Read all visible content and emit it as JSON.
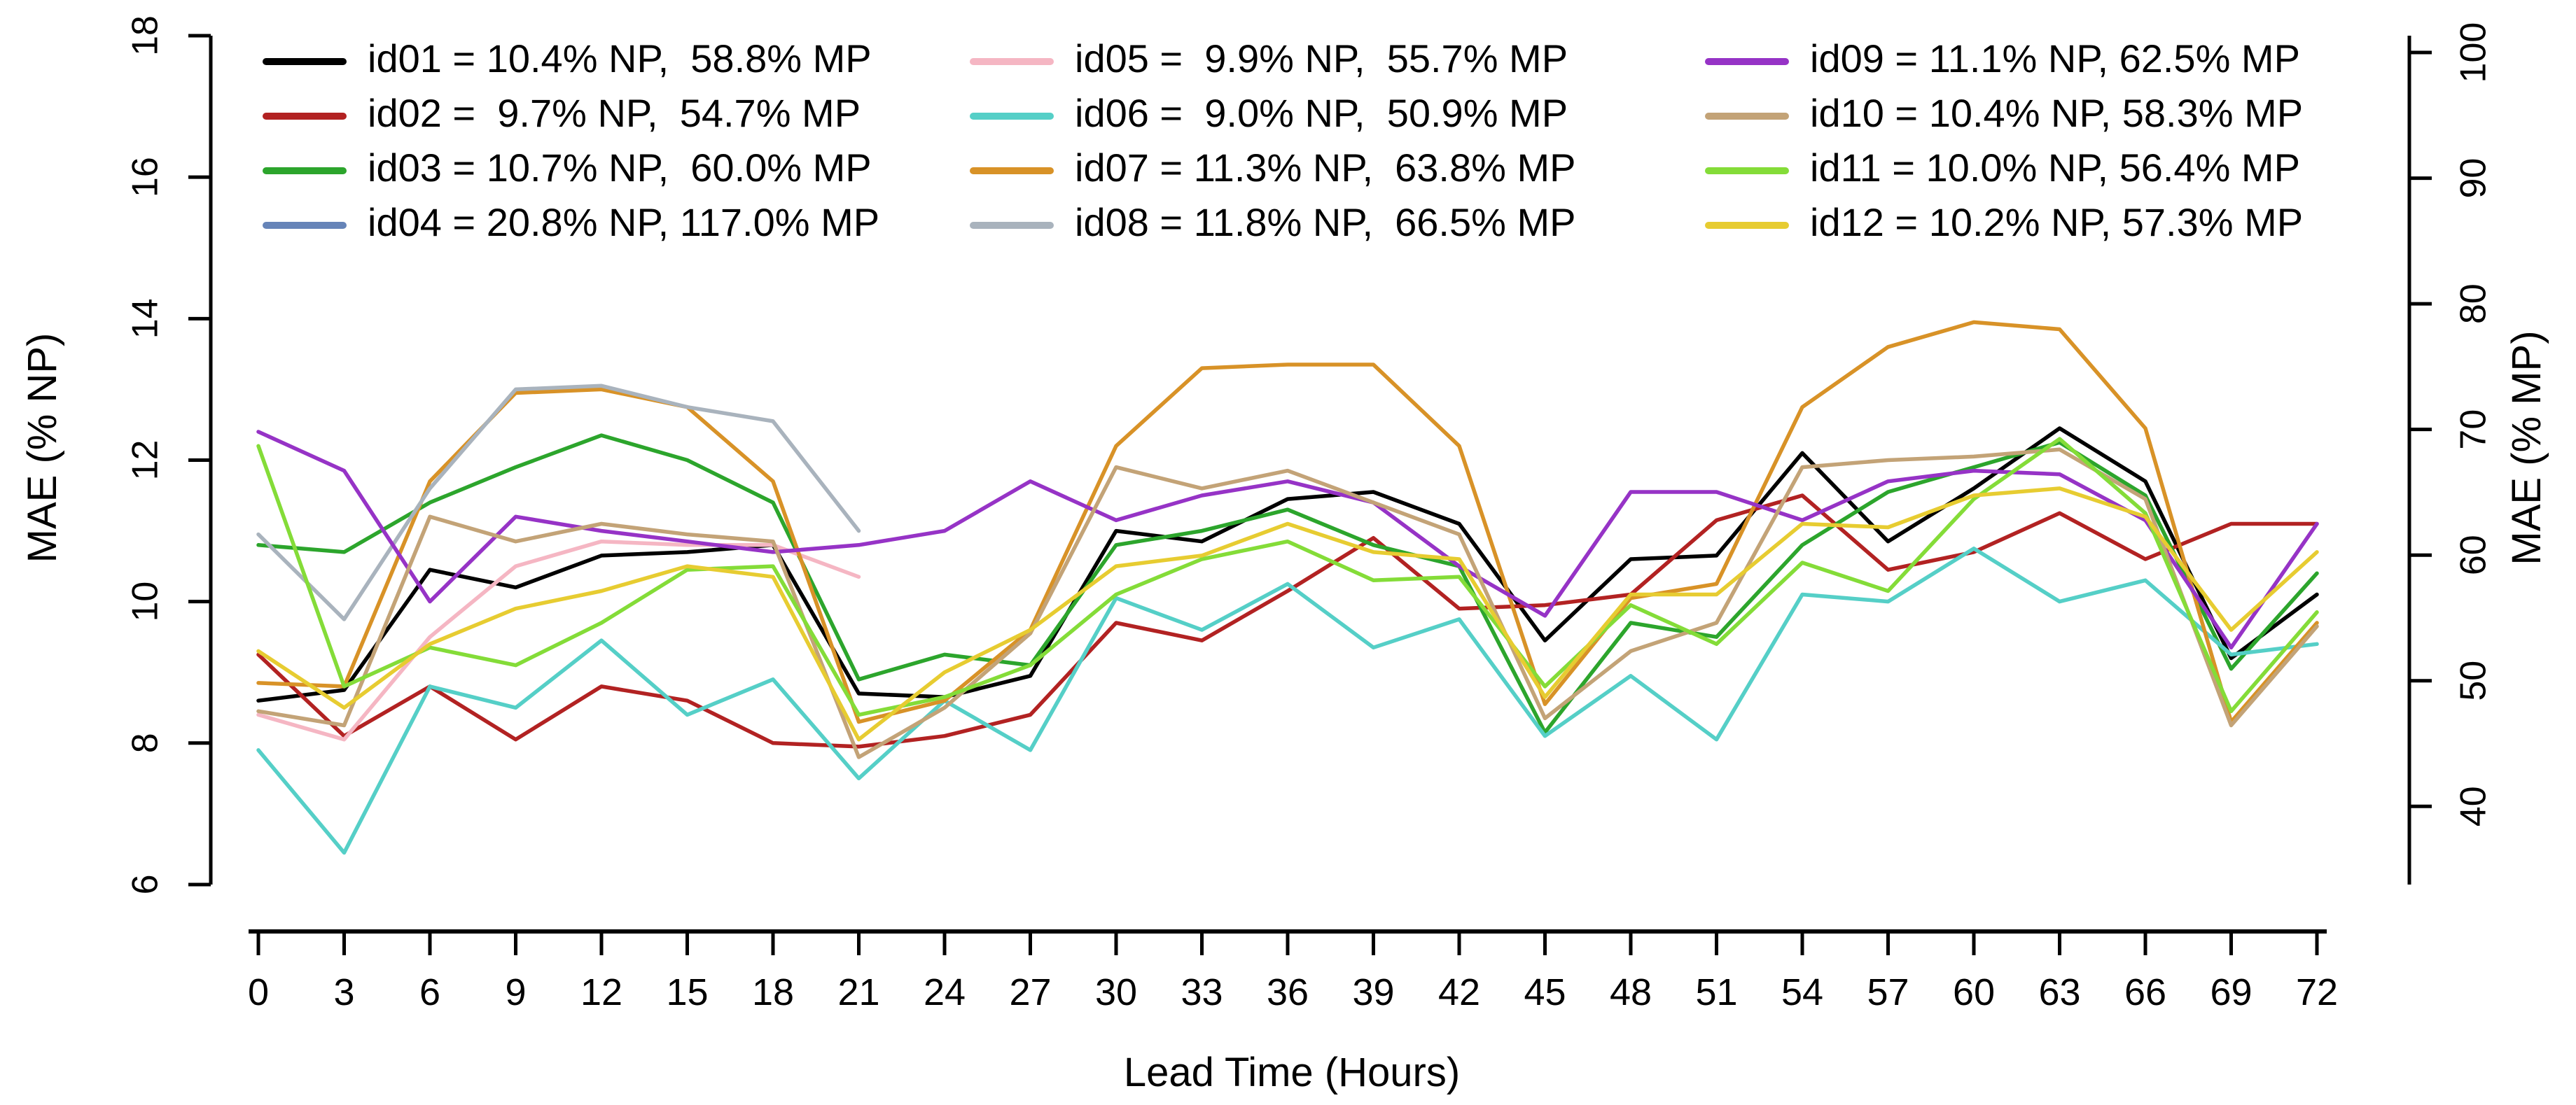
{
  "figure": {
    "xlabel": "Lead Time (Hours)",
    "ylabel_left": "MAE (% NP)",
    "ylabel_right": "MAE (% MP)"
  },
  "chart_data": {
    "type": "line",
    "title": "",
    "xlabel": "Lead Time (Hours)",
    "ylabel": "MAE (% NP)",
    "ylabel_right": "MAE (% MP)",
    "x": [
      0,
      3,
      6,
      9,
      12,
      15,
      18,
      21,
      24,
      27,
      30,
      33,
      36,
      39,
      42,
      45,
      48,
      51,
      54,
      57,
      60,
      63,
      66,
      69,
      72
    ],
    "xlim": [
      0,
      72
    ],
    "ylim": [
      6,
      18
    ],
    "ylim_right": [
      40,
      100
    ],
    "right_axis_ratio_mp_per_np": 5.63,
    "x_ticks": [
      0,
      3,
      6,
      9,
      12,
      15,
      18,
      21,
      24,
      27,
      30,
      33,
      36,
      39,
      42,
      45,
      48,
      51,
      54,
      57,
      60,
      63,
      66,
      69,
      72
    ],
    "y_ticks_left": [
      6,
      8,
      10,
      12,
      14,
      16,
      18
    ],
    "y_ticks_right": [
      40,
      50,
      60,
      70,
      80,
      90,
      100
    ],
    "grid": false,
    "legend_position": "top",
    "legend_columns": 3,
    "series": [
      {
        "name": "id01",
        "label": "id01 = 10.4% NP,  58.8% MP",
        "color": "#000000",
        "values": [
          8.6,
          8.75,
          10.45,
          10.2,
          10.65,
          10.7,
          10.8,
          8.7,
          8.65,
          8.95,
          11.0,
          10.85,
          11.45,
          11.55,
          11.1,
          9.45,
          10.6,
          10.65,
          12.1,
          10.85,
          11.6,
          12.45,
          11.7,
          9.2,
          10.1
        ]
      },
      {
        "name": "id02",
        "label": "id02 =  9.7% NP,  54.7% MP",
        "color": "#B22222",
        "values": [
          9.25,
          8.1,
          8.8,
          8.05,
          8.8,
          8.6,
          8.0,
          7.95,
          8.1,
          8.4,
          9.7,
          9.45,
          10.15,
          10.9,
          9.9,
          9.95,
          10.1,
          11.15,
          11.5,
          10.45,
          10.7,
          11.25,
          10.6,
          11.1,
          11.1
        ]
      },
      {
        "name": "id03",
        "label": "id03 = 10.7% NP,  60.0% MP",
        "color": "#2CA52C",
        "values": [
          10.8,
          10.7,
          11.4,
          11.9,
          12.35,
          12.0,
          11.4,
          8.9,
          9.25,
          9.1,
          10.8,
          11.0,
          11.3,
          10.8,
          10.5,
          8.15,
          9.7,
          9.5,
          10.8,
          11.55,
          11.9,
          12.25,
          11.5,
          9.05,
          10.4
        ]
      },
      {
        "name": "id04",
        "label": "id04 = 20.8% NP, 117.0% MP",
        "color": "#6684B8",
        "values": [
          null,
          null,
          null,
          null,
          null,
          null,
          null,
          null,
          null,
          null,
          null,
          null,
          null,
          null,
          null,
          null,
          null,
          null,
          null,
          null,
          null,
          null,
          null,
          null,
          null
        ]
      },
      {
        "name": "id05",
        "label": "id05 =  9.9% NP,  55.7% MP",
        "color": "#F5B6C3",
        "values": [
          8.4,
          8.05,
          9.5,
          10.5,
          10.85,
          10.8,
          10.8,
          10.35,
          null,
          null,
          null,
          null,
          null,
          null,
          null,
          null,
          null,
          null,
          null,
          null,
          null,
          null,
          null,
          null,
          null
        ]
      },
      {
        "name": "id06",
        "label": "id06 =  9.0% NP,  50.9% MP",
        "color": "#55CFC7",
        "values": [
          7.9,
          6.45,
          8.8,
          8.5,
          9.45,
          8.4,
          8.9,
          7.5,
          8.6,
          7.9,
          10.05,
          9.6,
          10.25,
          9.35,
          9.75,
          8.1,
          8.95,
          8.05,
          10.1,
          10.0,
          10.75,
          10.0,
          10.3,
          9.25,
          9.4
        ]
      },
      {
        "name": "id07",
        "label": "id07 = 11.3% NP,  63.8% MP",
        "color": "#D89227",
        "values": [
          8.85,
          8.8,
          11.7,
          12.95,
          13.0,
          12.75,
          11.7,
          8.3,
          8.6,
          9.6,
          12.2,
          13.3,
          13.35,
          13.35,
          12.2,
          8.55,
          10.05,
          10.25,
          12.75,
          13.6,
          13.95,
          13.85,
          12.45,
          8.3,
          9.7
        ]
      },
      {
        "name": "id08",
        "label": "id08 = 11.8% NP,  66.5% MP",
        "color": "#A9B3BD",
        "values": [
          10.95,
          9.75,
          11.6,
          13.0,
          13.05,
          12.75,
          12.55,
          11.0,
          null,
          null,
          null,
          null,
          null,
          null,
          null,
          null,
          null,
          null,
          null,
          null,
          null,
          null,
          null,
          null,
          null
        ]
      },
      {
        "name": "id09",
        "label": "id09 = 11.1% NP, 62.5% MP",
        "color": "#9633C6",
        "values": [
          12.4,
          11.85,
          10.0,
          11.2,
          11.0,
          10.85,
          10.7,
          10.8,
          11.0,
          11.7,
          11.15,
          11.5,
          11.7,
          11.4,
          10.5,
          9.8,
          11.55,
          11.55,
          11.15,
          11.7,
          11.85,
          11.8,
          11.15,
          9.35,
          11.1
        ]
      },
      {
        "name": "id10",
        "label": "id10 = 10.4% NP, 58.3% MP",
        "color": "#C3A377",
        "values": [
          8.45,
          8.25,
          11.2,
          10.85,
          11.1,
          10.95,
          10.85,
          7.8,
          8.5,
          9.55,
          11.9,
          11.6,
          11.85,
          11.4,
          10.95,
          8.35,
          9.3,
          9.7,
          11.9,
          12.0,
          12.05,
          12.15,
          11.45,
          8.25,
          9.65
        ]
      },
      {
        "name": "id11",
        "label": "id11 = 10.0% NP, 56.4% MP",
        "color": "#84DC38",
        "values": [
          12.2,
          8.8,
          9.35,
          9.1,
          9.7,
          10.45,
          10.5,
          8.4,
          8.65,
          9.1,
          10.1,
          10.6,
          10.85,
          10.3,
          10.35,
          8.8,
          9.95,
          9.4,
          10.55,
          10.15,
          11.45,
          12.3,
          11.25,
          8.45,
          9.85
        ]
      },
      {
        "name": "id12",
        "label": "id12 = 10.2% NP, 57.3% MP",
        "color": "#E7CC31",
        "values": [
          9.3,
          8.5,
          9.4,
          9.9,
          10.15,
          10.5,
          10.35,
          8.05,
          9.0,
          9.6,
          10.5,
          10.65,
          11.1,
          10.7,
          10.6,
          8.65,
          10.1,
          10.1,
          11.1,
          11.05,
          11.5,
          11.6,
          11.2,
          9.6,
          10.7
        ]
      }
    ]
  }
}
